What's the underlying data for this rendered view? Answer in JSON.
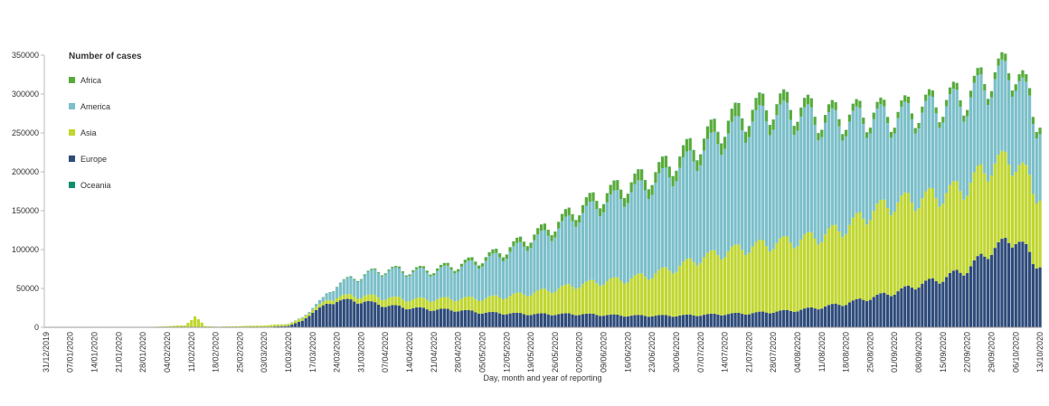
{
  "chart_data": {
    "type": "bar",
    "stacked": true,
    "title": "",
    "legend_title": "Number of cases",
    "legend_position": "top-left",
    "xlabel": "Day, month and year of reporting",
    "ylabel": "",
    "ylim": [
      0,
      350000
    ],
    "y_ticks": [
      0,
      50000,
      100000,
      150000,
      200000,
      250000,
      300000,
      350000
    ],
    "x_ticks": [
      "31/12/2019",
      "07/01/2020",
      "14/01/2020",
      "21/01/2020",
      "28/01/2020",
      "04/02/2020",
      "11/02/2020",
      "18/02/2020",
      "25/02/2020",
      "03/03/2020",
      "10/03/2020",
      "17/03/2020",
      "24/03/2020",
      "31/03/2020",
      "07/04/2020",
      "14/04/2020",
      "21/04/2020",
      "28/04/2020",
      "05/05/2020",
      "12/05/2020",
      "19/05/2020",
      "26/05/2020",
      "02/06/2020",
      "09/06/2020",
      "16/06/2020",
      "23/06/2020",
      "30/06/2020",
      "07/07/2020",
      "14/07/2020",
      "21/07/2020",
      "28/07/2020",
      "04/08/2020",
      "11/08/2020",
      "18/08/2020",
      "25/08/2020",
      "01/09/2020",
      "08/09/2020",
      "15/09/2020",
      "22/09/2020",
      "29/09/2020",
      "06/10/2020",
      "13/10/2020"
    ],
    "grid": false,
    "series": [
      {
        "name": "Europe",
        "color": "#2e4b7a",
        "anchors": [
          [
            0,
            0
          ],
          [
            50,
            0
          ],
          [
            60,
            200
          ],
          [
            64,
            500
          ],
          [
            70,
            2000
          ],
          [
            74,
            8000
          ],
          [
            77,
            20000
          ],
          [
            84,
            35000
          ],
          [
            92,
            33000
          ],
          [
            98,
            28000
          ],
          [
            105,
            25000
          ],
          [
            112,
            23000
          ],
          [
            119,
            22000
          ],
          [
            126,
            19000
          ],
          [
            133,
            18000
          ],
          [
            140,
            17000
          ],
          [
            147,
            17000
          ],
          [
            154,
            17000
          ],
          [
            161,
            16000
          ],
          [
            168,
            15000
          ],
          [
            175,
            15000
          ],
          [
            182,
            15000
          ],
          [
            189,
            16000
          ],
          [
            196,
            17000
          ],
          [
            203,
            18000
          ],
          [
            210,
            20000
          ],
          [
            217,
            22000
          ],
          [
            224,
            26000
          ],
          [
            231,
            31000
          ],
          [
            238,
            38000
          ],
          [
            245,
            45000
          ],
          [
            252,
            55000
          ],
          [
            259,
            63000
          ],
          [
            266,
            75000
          ],
          [
            273,
            100000
          ],
          [
            280,
            115000
          ],
          [
            283,
            100000
          ],
          [
            285,
            83000
          ]
        ]
      },
      {
        "name": "Asia",
        "color": "#c0d62f",
        "anchors": [
          [
            0,
            0
          ],
          [
            20,
            0
          ],
          [
            30,
            300
          ],
          [
            35,
            1500
          ],
          [
            40,
            2500
          ],
          [
            43,
            14000
          ],
          [
            46,
            1500
          ],
          [
            50,
            800
          ],
          [
            56,
            1500
          ],
          [
            63,
            2000
          ],
          [
            70,
            2500
          ],
          [
            77,
            4000
          ],
          [
            84,
            5000
          ],
          [
            91,
            7000
          ],
          [
            98,
            10000
          ],
          [
            105,
            11000
          ],
          [
            112,
            13000
          ],
          [
            119,
            15000
          ],
          [
            126,
            18000
          ],
          [
            133,
            22000
          ],
          [
            140,
            27000
          ],
          [
            147,
            32000
          ],
          [
            154,
            38000
          ],
          [
            161,
            43000
          ],
          [
            168,
            47000
          ],
          [
            175,
            53000
          ],
          [
            182,
            62000
          ],
          [
            189,
            73000
          ],
          [
            196,
            80000
          ],
          [
            203,
            85000
          ],
          [
            210,
            88000
          ],
          [
            217,
            90000
          ],
          [
            224,
            92000
          ],
          [
            231,
            98000
          ],
          [
            238,
            110000
          ],
          [
            245,
            115000
          ],
          [
            252,
            110000
          ],
          [
            259,
            108000
          ],
          [
            266,
            107000
          ],
          [
            273,
            110000
          ],
          [
            280,
            100000
          ],
          [
            285,
            92000
          ]
        ]
      },
      {
        "name": "America",
        "color": "#7bbfca",
        "anchors": [
          [
            0,
            0
          ],
          [
            60,
            0
          ],
          [
            68,
            100
          ],
          [
            75,
            1000
          ],
          [
            80,
            5000
          ],
          [
            84,
            15000
          ],
          [
            91,
            25000
          ],
          [
            98,
            35000
          ],
          [
            105,
            35000
          ],
          [
            112,
            36000
          ],
          [
            119,
            40000
          ],
          [
            126,
            47000
          ],
          [
            133,
            55000
          ],
          [
            140,
            66000
          ],
          [
            147,
            75000
          ],
          [
            154,
            90000
          ],
          [
            161,
            100000
          ],
          [
            168,
            110000
          ],
          [
            175,
            115000
          ],
          [
            182,
            125000
          ],
          [
            189,
            135000
          ],
          [
            196,
            150000
          ],
          [
            203,
            160000
          ],
          [
            210,
            165000
          ],
          [
            217,
            160000
          ],
          [
            224,
            145000
          ],
          [
            231,
            135000
          ],
          [
            238,
            120000
          ],
          [
            245,
            108000
          ],
          [
            252,
            110000
          ],
          [
            259,
            112000
          ],
          [
            266,
            110000
          ],
          [
            273,
            108000
          ],
          [
            280,
            112000
          ],
          [
            285,
            92000
          ]
        ]
      },
      {
        "name": "Africa",
        "color": "#58ab3b",
        "anchors": [
          [
            0,
            0
          ],
          [
            70,
            0
          ],
          [
            80,
            200
          ],
          [
            90,
            800
          ],
          [
            100,
            1500
          ],
          [
            110,
            2500
          ],
          [
            120,
            3500
          ],
          [
            130,
            5000
          ],
          [
            140,
            7000
          ],
          [
            150,
            9000
          ],
          [
            160,
            11000
          ],
          [
            170,
            13000
          ],
          [
            180,
            14000
          ],
          [
            190,
            15000
          ],
          [
            196,
            16000
          ],
          [
            203,
            15000
          ],
          [
            210,
            14000
          ],
          [
            217,
            12000
          ],
          [
            224,
            10000
          ],
          [
            231,
            9000
          ],
          [
            238,
            8000
          ],
          [
            245,
            8000
          ],
          [
            252,
            7500
          ],
          [
            259,
            8000
          ],
          [
            266,
            8500
          ],
          [
            273,
            8500
          ],
          [
            280,
            9000
          ],
          [
            285,
            9000
          ]
        ]
      },
      {
        "name": "Oceania",
        "color": "#0f8f6b",
        "anchors": [
          [
            0,
            0
          ],
          [
            75,
            0
          ],
          [
            80,
            300
          ],
          [
            90,
            500
          ],
          [
            100,
            200
          ],
          [
            150,
            100
          ],
          [
            190,
            400
          ],
          [
            200,
            500
          ],
          [
            215,
            300
          ],
          [
            235,
            100
          ],
          [
            285,
            100
          ]
        ]
      }
    ],
    "weekly_pattern": [
      0.93,
      1.0,
      1.05,
      1.07,
      1.06,
      0.98,
      0.91
    ],
    "legend_order": [
      "Africa",
      "America",
      "Asia",
      "Europe",
      "Oceania"
    ]
  }
}
